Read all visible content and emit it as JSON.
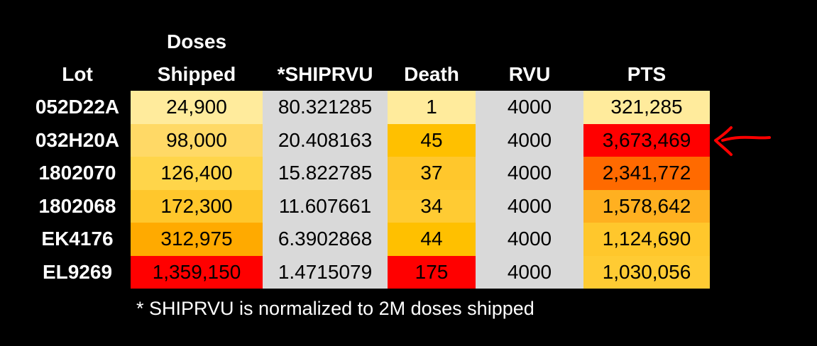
{
  "headers": {
    "lot": "Lot",
    "doses_line1": "Doses",
    "doses_line2": "Shipped",
    "shiprvu": "*SHIPRVU",
    "death": "Death",
    "rvu": "RVU",
    "pts": "PTS"
  },
  "rows": [
    {
      "lot": "052D22A",
      "doses": "24,900",
      "shiprvu": "80.321285",
      "death": "1",
      "rvu": "4000",
      "pts": "321,285",
      "colors": {
        "doses": "#FFEB9C",
        "death": "#FFEB9C",
        "pts": "#FFEB9C"
      }
    },
    {
      "lot": "032H20A",
      "doses": "98,000",
      "shiprvu": "20.408163",
      "death": "45",
      "rvu": "4000",
      "pts": "3,673,469",
      "colors": {
        "doses": "#FFD966",
        "death": "#FFC000",
        "pts": "#FF0000"
      }
    },
    {
      "lot": "1802070",
      "doses": "126,400",
      "shiprvu": "15.822785",
      "death": "37",
      "rvu": "4000",
      "pts": "2,341,772",
      "colors": {
        "doses": "#FFD54A",
        "death": "#FFC72C",
        "pts": "#FF6A00"
      }
    },
    {
      "lot": "1802068",
      "doses": "172,300",
      "shiprvu": "11.607661",
      "death": "34",
      "rvu": "4000",
      "pts": "1,578,642",
      "colors": {
        "doses": "#FFC72C",
        "death": "#FFCB33",
        "pts": "#FFB020"
      }
    },
    {
      "lot": "EK4176",
      "doses": "312,975",
      "shiprvu": "6.3902868",
      "death": "44",
      "rvu": "4000",
      "pts": "1,124,690",
      "colors": {
        "doses": "#FFAA00",
        "death": "#FFC000",
        "pts": "#FFC72C"
      }
    },
    {
      "lot": "EL9269",
      "doses": "1,359,150",
      "shiprvu": "1.4715079",
      "death": "175",
      "rvu": "4000",
      "pts": "1,030,056",
      "colors": {
        "doses": "#FF0000",
        "death": "#FF0000",
        "pts": "#FFCB33"
      }
    }
  ],
  "neutral_color": "#D9D9D9",
  "footnote": "* SHIPRVU is normalized to 2M doses shipped",
  "annotation_icon": "red-arrow-icon",
  "annotation_color": "#FF0000"
}
